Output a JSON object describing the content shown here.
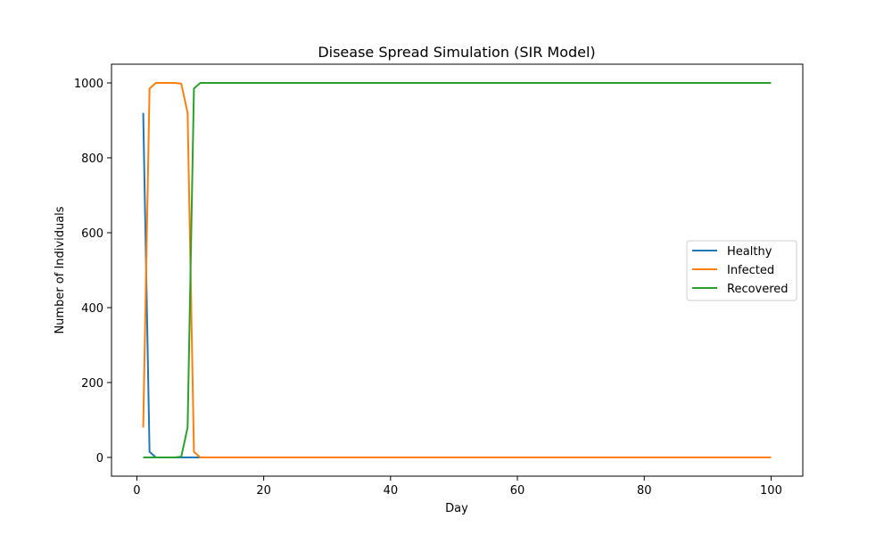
{
  "chart_data": {
    "type": "line",
    "title": "Disease Spread Simulation (SIR Model)",
    "xlabel": "Day",
    "ylabel": "Number of Individuals",
    "xlim": [
      -4,
      105
    ],
    "ylim": [
      -50,
      1050
    ],
    "xticks": [
      0,
      20,
      40,
      60,
      80,
      100
    ],
    "yticks": [
      0,
      200,
      400,
      600,
      800,
      1000
    ],
    "grid": false,
    "legend_position": "center-right",
    "series": [
      {
        "name": "Healthy",
        "color": "#1f77b4",
        "x": [
          1,
          2,
          3,
          4,
          5,
          6,
          7,
          8,
          9,
          10,
          100
        ],
        "y": [
          920,
          15,
          0,
          0,
          0,
          0,
          0,
          0,
          0,
          0,
          0
        ]
      },
      {
        "name": "Infected",
        "color": "#ff7f0e",
        "x": [
          1,
          2,
          3,
          4,
          5,
          6,
          7,
          8,
          9,
          10,
          100
        ],
        "y": [
          80,
          985,
          1000,
          1000,
          1000,
          1000,
          998,
          920,
          15,
          0,
          0
        ]
      },
      {
        "name": "Recovered",
        "color": "#2ca02c",
        "x": [
          1,
          2,
          3,
          4,
          5,
          6,
          7,
          8,
          9,
          10,
          100
        ],
        "y": [
          0,
          0,
          0,
          0,
          0,
          0,
          2,
          80,
          985,
          1000,
          1000
        ]
      }
    ]
  }
}
